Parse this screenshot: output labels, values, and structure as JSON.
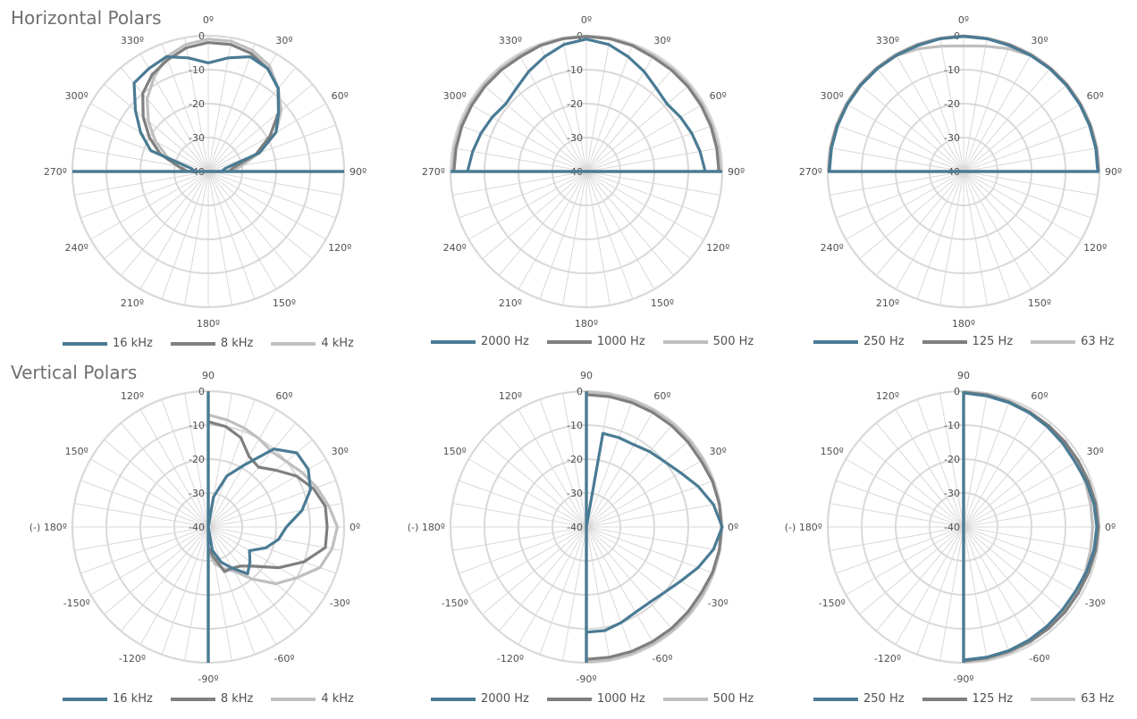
{
  "sections": {
    "horizontal": {
      "title": "Horizontal Polars"
    },
    "vertical": {
      "title": "Vertical Polars"
    }
  },
  "colors": {
    "grid": "#d9d9d9",
    "series": [
      "#4a7b94",
      "#7f7f7f",
      "#bfbfbf"
    ]
  },
  "chart_data": [
    {
      "type": "polar",
      "section": "horizontal",
      "rmin": -40,
      "rmax": 0,
      "radial_ticks": [
        "0",
        "-10",
        "-20",
        "-30",
        "-40"
      ],
      "angle_labels": [
        "0º",
        "30º",
        "60º",
        "90º",
        "120º",
        "150º",
        "180º",
        "210º",
        "240º",
        "270º",
        "300º",
        "330º"
      ],
      "angles": [
        -90,
        -80,
        -70,
        -60,
        -50,
        -40,
        -30,
        -20,
        -10,
        0,
        10,
        20,
        30,
        40,
        50,
        60,
        70,
        80,
        90
      ],
      "series": [
        {
          "name": "16 kHz",
          "values": [
            -36,
            -35,
            -22,
            -17,
            -12,
            -6,
            -5,
            -4,
            -6,
            -8,
            -6,
            -4,
            -5,
            -8,
            -13,
            -17,
            -24,
            -35,
            -36
          ]
        },
        {
          "name": "8 kHz",
          "values": [
            -34,
            -31,
            -25,
            -20,
            -15,
            -10,
            -7,
            -5,
            -3,
            -2,
            -2,
            -3,
            -5,
            -8,
            -13,
            -19,
            -25,
            -32,
            -34
          ]
        },
        {
          "name": "4 kHz",
          "values": [
            -33,
            -31,
            -27,
            -22,
            -17,
            -12,
            -8,
            -4,
            -2,
            -1,
            -1,
            -2,
            -4,
            -8,
            -12,
            -17,
            -24,
            -30,
            -33
          ]
        }
      ]
    },
    {
      "type": "polar",
      "section": "horizontal",
      "rmin": -40,
      "rmax": 0,
      "radial_ticks": [
        "0",
        "-10",
        "-20",
        "-30",
        "-40"
      ],
      "angle_labels": [
        "0º",
        "30º",
        "60º",
        "90º",
        "120º",
        "150º",
        "180º",
        "210º",
        "240º",
        "270º",
        "300º",
        "330º"
      ],
      "angles": [
        -90,
        -80,
        -70,
        -60,
        -50,
        -40,
        -30,
        -20,
        -10,
        0,
        10,
        20,
        30,
        40,
        50,
        60,
        70,
        80,
        90
      ],
      "series": [
        {
          "name": "2000 Hz",
          "values": [
            -5,
            -6,
            -7,
            -8,
            -9,
            -8,
            -6,
            -4,
            -2,
            -1,
            -2,
            -4,
            -6,
            -8,
            -9,
            -8,
            -7,
            -6,
            -5
          ]
        },
        {
          "name": "1000 Hz",
          "values": [
            -1,
            -1,
            -1,
            -1,
            -1,
            -1,
            -1,
            -0.5,
            -0.3,
            -0.2,
            -0.3,
            -0.5,
            -1,
            -1,
            -1,
            -1,
            -1,
            -1,
            -1
          ]
        },
        {
          "name": "500 Hz",
          "values": [
            -0.5,
            -0.5,
            -0.5,
            -0.5,
            -0.5,
            -0.5,
            -0.5,
            -0.3,
            -0.2,
            -0.1,
            -0.2,
            -0.3,
            -0.5,
            -0.5,
            -0.5,
            -0.5,
            -0.5,
            -0.5,
            -0.5
          ]
        }
      ]
    },
    {
      "type": "polar",
      "section": "horizontal",
      "rmin": -40,
      "rmax": 0,
      "radial_ticks": [
        "0",
        "-10",
        "-20",
        "-30",
        "-40"
      ],
      "angle_labels": [
        "0º",
        "30º",
        "60º",
        "90º",
        "120º",
        "150º",
        "180º",
        "210º",
        "240º",
        "270º",
        "300º",
        "330º"
      ],
      "angles": [
        -90,
        -80,
        -70,
        -60,
        -50,
        -40,
        -30,
        -20,
        -10,
        0,
        10,
        20,
        30,
        40,
        50,
        60,
        70,
        80,
        90
      ],
      "series": [
        {
          "name": "250 Hz",
          "values": [
            -0.5,
            -0.5,
            -0.5,
            -0.5,
            -0.5,
            -0.5,
            -0.5,
            -0.5,
            -0.3,
            -0.2,
            -0.3,
            -0.5,
            -0.5,
            -0.5,
            -0.5,
            -0.5,
            -0.5,
            -0.5,
            -0.5
          ]
        },
        {
          "name": "125 Hz",
          "values": [
            -0.3,
            -0.3,
            -0.3,
            -0.3,
            -0.3,
            -0.3,
            -0.3,
            -0.3,
            -0.2,
            -0.1,
            -0.2,
            -0.3,
            -0.3,
            -0.3,
            -0.3,
            -0.3,
            -0.3,
            -0.3,
            -0.3
          ]
        },
        {
          "name": "63 Hz",
          "values": [
            -0.4,
            -0.4,
            -0.4,
            -0.4,
            -0.4,
            -0.4,
            -0.5,
            -1.5,
            -2.5,
            -3,
            -2.5,
            -1.5,
            -0.5,
            -0.4,
            -0.4,
            -0.4,
            -0.4,
            -0.4,
            -0.4
          ]
        }
      ]
    },
    {
      "type": "polar",
      "section": "vertical",
      "rmin": -40,
      "rmax": 0,
      "radial_ticks": [
        "0",
        "-10",
        "-20",
        "-30",
        "-40"
      ],
      "angle_labels": [
        "90",
        "60º",
        "30º",
        "0º",
        "-30º",
        "-60º",
        "-90º",
        "-120º",
        "-150º",
        "(-) 180º",
        "150º",
        "120º"
      ],
      "angles": [
        90,
        80,
        70,
        60,
        50,
        40,
        30,
        20,
        10,
        0,
        -10,
        -20,
        -30,
        -40,
        -50,
        -60,
        -70,
        -80,
        -90
      ],
      "series": [
        {
          "name": "16 kHz",
          "values": [
            -40,
            -31,
            -24,
            -19,
            -10,
            -6,
            -6,
            -8,
            -12,
            -17,
            -19,
            -22,
            -26,
            -24,
            -22,
            -26,
            -29,
            -33,
            -40
          ]
        },
        {
          "name": "8 kHz",
          "values": [
            -9,
            -10,
            -12,
            -16,
            -17,
            -14,
            -10,
            -7,
            -5,
            -5,
            -5,
            -10,
            -16,
            -22,
            -25,
            -26,
            -26,
            -31,
            -34
          ]
        },
        {
          "name": "4 kHz",
          "values": [
            -7,
            -8,
            -9,
            -10,
            -11,
            -10,
            -8,
            -6,
            -4,
            -2,
            -3,
            -5,
            -10,
            -14,
            -20,
            -25,
            -27,
            -29,
            -33
          ]
        }
      ]
    },
    {
      "type": "polar",
      "section": "vertical",
      "rmin": -40,
      "rmax": 0,
      "radial_ticks": [
        "0",
        "-10",
        "-20",
        "-30",
        "-40"
      ],
      "angle_labels": [
        "90",
        "60º",
        "30º",
        "0º",
        "-30º",
        "-60º",
        "-90º",
        "-120º",
        "-150º",
        "(-) 180º",
        "150º",
        "120º"
      ],
      "angles": [
        90,
        80,
        70,
        60,
        50,
        40,
        30,
        20,
        10,
        0,
        -10,
        -20,
        -30,
        -40,
        -50,
        -60,
        -70,
        -80,
        -90
      ],
      "series": [
        {
          "name": "2000 Hz",
          "values": [
            -40,
            -12,
            -12,
            -12,
            -11,
            -10,
            -8,
            -5,
            -2,
            0,
            -2,
            -5,
            -8,
            -10,
            -11,
            -11,
            -10,
            -9,
            -9
          ]
        },
        {
          "name": "1000 Hz",
          "values": [
            -1,
            -1,
            -1,
            -1,
            -1,
            -1,
            -1,
            -0.5,
            -0.3,
            -0.2,
            -0.3,
            -0.5,
            -1,
            -1,
            -1,
            -1,
            -1,
            -1,
            -1
          ]
        },
        {
          "name": "500 Hz",
          "values": [
            -0.2,
            -0.3,
            -0.3,
            -0.3,
            -0.3,
            -0.3,
            -0.3,
            -0.3,
            -0.2,
            -0.1,
            -0.2,
            -0.3,
            -0.3,
            -0.3,
            -0.3,
            -0.3,
            -0.3,
            -0.3,
            -0.3
          ]
        }
      ]
    },
    {
      "type": "polar",
      "section": "vertical",
      "rmin": -40,
      "rmax": 0,
      "radial_ticks": [
        "0",
        "-10",
        "-20",
        "-30",
        "-40"
      ],
      "angle_labels": [
        "90",
        "60º",
        "30º",
        "0º",
        "-30º",
        "-60º",
        "-90º",
        "-120º",
        "-150º",
        "(-) 180º",
        "150º",
        "120º"
      ],
      "angles": [
        90,
        80,
        70,
        60,
        50,
        40,
        30,
        20,
        10,
        0,
        -10,
        -20,
        -30,
        -40,
        -50,
        -60,
        -70,
        -80,
        -90
      ],
      "series": [
        {
          "name": "250 Hz",
          "values": [
            -0.5,
            -0.8,
            -1,
            -1.2,
            -1.5,
            -1.8,
            -2,
            -1.5,
            -1,
            -0.8,
            -1,
            -1.5,
            -2,
            -2,
            -1.8,
            -1.5,
            -1.2,
            -1,
            -0.8
          ]
        },
        {
          "name": "125 Hz",
          "values": [
            -0.3,
            -0.5,
            -0.8,
            -1,
            -1,
            -1,
            -1,
            -0.8,
            -0.5,
            -0.3,
            -0.5,
            -0.8,
            -1,
            -1,
            -1,
            -1,
            -1,
            -0.8,
            -0.5
          ]
        },
        {
          "name": "63 Hz",
          "values": [
            -0.2,
            -0.3,
            -0.5,
            -0.8,
            -1,
            -1.2,
            -1.5,
            -1.8,
            -2,
            -2,
            -2,
            -1.8,
            -1.5,
            -1.2,
            -1,
            -0.8,
            -0.5,
            -0.3,
            -0.2
          ]
        }
      ]
    }
  ]
}
